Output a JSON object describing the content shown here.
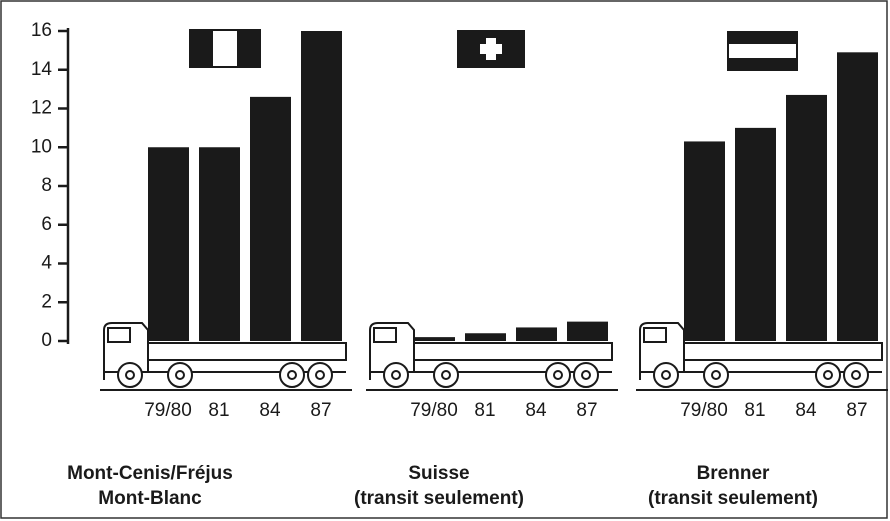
{
  "chart_data": {
    "type": "bar",
    "color": "#1a1a1a",
    "ylim": [
      0,
      16
    ],
    "yticks": [
      0,
      2,
      4,
      6,
      8,
      10,
      12,
      14,
      16
    ],
    "groups": [
      {
        "label": [
          "Mont-Cenis/Fréjus",
          "Mont-Blanc"
        ],
        "categories": [
          "79/80",
          "81",
          "84",
          "87"
        ],
        "values": [
          10,
          10,
          12.6,
          16
        ]
      },
      {
        "label": [
          "Suisse",
          "(transit seulement)"
        ],
        "categories": [
          "79/80",
          "81",
          "84",
          "87"
        ],
        "values": [
          0.2,
          0.4,
          0.7,
          1.0
        ]
      },
      {
        "label": [
          "Brenner",
          "(transit seulement)"
        ],
        "categories": [
          "79/80",
          "81",
          "84",
          "87"
        ],
        "values": [
          10.3,
          11,
          12.7,
          14.9
        ]
      }
    ]
  }
}
